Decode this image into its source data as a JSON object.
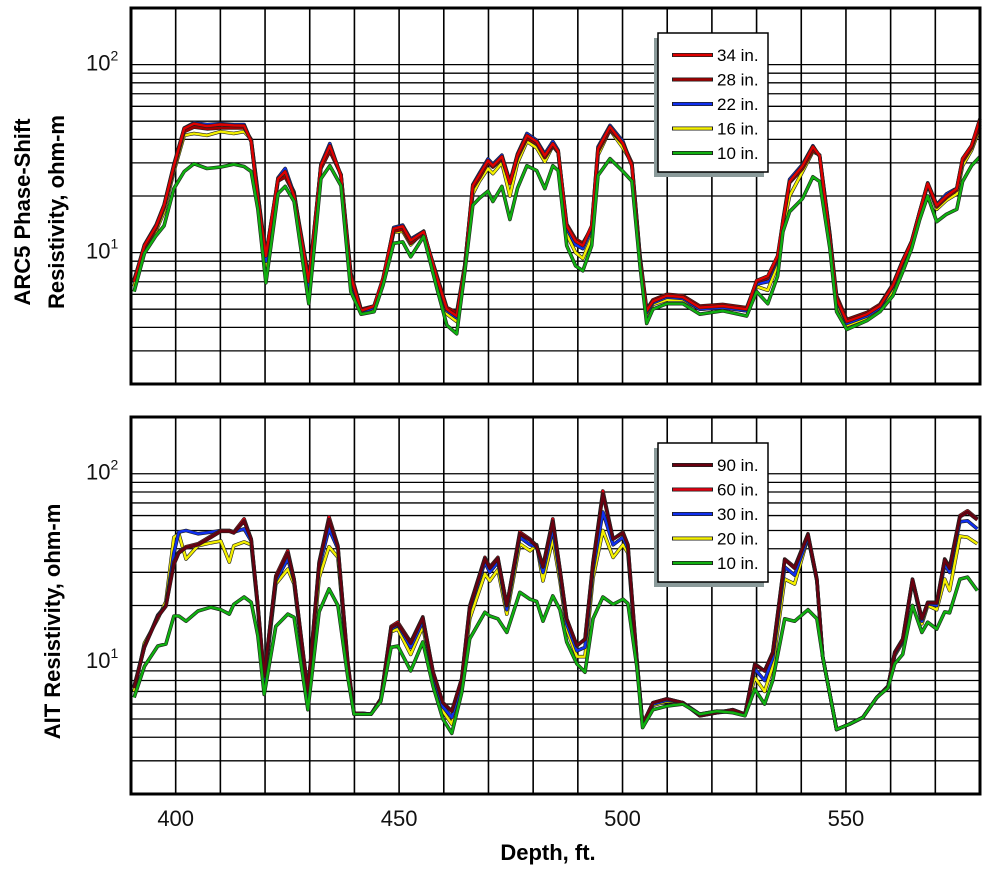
{
  "chart_data": [
    {
      "type": "line",
      "ylabel_lines": [
        "ARC5 Phase-Shift",
        "Resistivity, ohm-m"
      ],
      "xlabel": "",
      "xlim": [
        390,
        580
      ],
      "ylim": [
        2,
        200
      ],
      "yscale": "log",
      "grid": true,
      "legend_position": "top-right",
      "yticks": [
        {
          "value": 100,
          "base": "10",
          "exp": "2"
        },
        {
          "value": 10,
          "base": "10",
          "exp": "1"
        }
      ],
      "xticks": [],
      "x": [
        390.7,
        393,
        395.6,
        397.4,
        399.6,
        401.9,
        404.1,
        407,
        410,
        413,
        415.3,
        416.9,
        418.4,
        420.2,
        422.9,
        424.5,
        426.5,
        429.8,
        432.5,
        434.5,
        437,
        439.2,
        441.5,
        444.4,
        446.4,
        448.8,
        450.8,
        452.6,
        455.5,
        458.5,
        460.7,
        462.9,
        464.7,
        466.5,
        468,
        469.9,
        471,
        473,
        474.8,
        476.5,
        478.6,
        480.8,
        482.6,
        484.4,
        485.6,
        487.5,
        489.5,
        491.1,
        493.1,
        494.5,
        497.2,
        500.1,
        502.1,
        503.9,
        505.4,
        506.8,
        509.9,
        513.5,
        517.3,
        522.4,
        527.8,
        530,
        532.5,
        534.7,
        535.9,
        537.4,
        540.3,
        542.6,
        544.1,
        546.4,
        547.9,
        550.2,
        554.7,
        557.6,
        560.5,
        562.7,
        564.7,
        566.5,
        568.3,
        570.3,
        572.5,
        574.8,
        576.1,
        578.1,
        580
      ],
      "series": [
        {
          "name": "34 in.",
          "color": "#e00000",
          "values": [
            7.0,
            10.9,
            13.8,
            17.8,
            29,
            45.7,
            48.5,
            47,
            48,
            47.5,
            47.3,
            38.9,
            19.4,
            9.6,
            24.7,
            27,
            20,
            7.0,
            29,
            37,
            25.7,
            7.5,
            4.9,
            5.2,
            7.3,
            13.4,
            13.8,
            11.6,
            12.9,
            7.3,
            5.0,
            4.6,
            8.5,
            22.7,
            26,
            30.9,
            29,
            32.4,
            23.3,
            33,
            42,
            38.9,
            32.8,
            38,
            34.5,
            13.9,
            11.5,
            10.9,
            13.9,
            35.7,
            46.7,
            38,
            29,
            9.3,
            4.9,
            5.5,
            5.9,
            5.8,
            5.1,
            5.2,
            5.0,
            7.1,
            7.5,
            9.6,
            14.6,
            23.9,
            29,
            36.6,
            32.8,
            11.9,
            5.7,
            4.3,
            4.7,
            5.2,
            6.7,
            9.0,
            11.4,
            16.5,
            23.3,
            17.8,
            20,
            21.9,
            31.6,
            37,
            51.6
          ]
        },
        {
          "name": "28 in.",
          "color": "#a00000",
          "values": [
            7.2,
            10.6,
            13.4,
            17.3,
            28,
            44,
            46.5,
            45.5,
            46,
            46,
            46,
            40,
            20.5,
            9.8,
            24,
            25.3,
            20.5,
            7.3,
            28,
            34.7,
            26,
            7.8,
            5.0,
            5.2,
            7.2,
            13,
            13.3,
            11.2,
            12.7,
            7.5,
            5.1,
            4.8,
            8.6,
            22,
            25,
            30,
            28.5,
            31.5,
            23.5,
            32,
            40.5,
            38,
            32,
            37,
            34,
            14.2,
            11.8,
            11.2,
            13.6,
            34.5,
            45,
            38,
            30,
            9.6,
            5.0,
            5.6,
            6.0,
            5.9,
            5.2,
            5.3,
            5.1,
            7.0,
            7.3,
            9.4,
            14.3,
            23.5,
            28,
            35,
            33,
            12.4,
            5.9,
            4.4,
            4.8,
            5.3,
            6.8,
            9.1,
            11.5,
            16.5,
            23,
            17.5,
            19.6,
            21.5,
            30.5,
            36,
            48
          ]
        },
        {
          "name": "22 in.",
          "color": "#1030f0",
          "values": [
            7.1,
            11,
            14,
            18,
            29.5,
            46,
            49,
            48,
            48.5,
            48,
            48,
            39,
            19,
            9.0,
            25,
            28,
            20.5,
            6.3,
            29.5,
            38,
            25.5,
            7.2,
            4.8,
            5.1,
            7.1,
            13.6,
            14,
            11.8,
            13,
            7.1,
            4.9,
            4.5,
            8.4,
            23,
            26.5,
            31.5,
            29.5,
            33,
            23.8,
            33.5,
            43,
            39.5,
            33.5,
            39,
            35,
            13.5,
            11,
            10.5,
            13.5,
            36.5,
            47.5,
            39,
            29,
            9.0,
            4.8,
            5.4,
            5.8,
            5.7,
            5.0,
            5.1,
            4.9,
            6.8,
            7.0,
            9.2,
            14.8,
            24.5,
            29.5,
            37,
            32.5,
            11.5,
            5.6,
            4.2,
            4.6,
            5.1,
            6.6,
            8.9,
            11.3,
            16.5,
            23.5,
            18,
            20.5,
            22,
            31.5,
            37,
            50
          ]
        },
        {
          "name": "16 in.",
          "color": "#f4f000",
          "values": [
            6.6,
            10.4,
            13.0,
            16.5,
            27,
            42,
            43,
            42,
            44,
            43,
            44,
            40,
            21,
            8.5,
            24,
            26,
            21,
            6.5,
            29,
            35,
            26,
            7.3,
            4.8,
            5.0,
            7.0,
            12.8,
            13.0,
            11.0,
            13.0,
            7.0,
            4.7,
            4.3,
            8.3,
            20.5,
            24,
            28,
            26.3,
            30,
            20,
            30,
            39,
            36,
            30.4,
            37,
            34,
            12.5,
            10,
            9.3,
            12,
            33,
            45,
            36,
            30,
            9.5,
            4.7,
            5.3,
            5.6,
            5.6,
            5.0,
            5.1,
            4.9,
            6.6,
            6.3,
            8.6,
            13.5,
            20,
            27,
            34.5,
            33,
            12.5,
            5.4,
            4.1,
            4.5,
            5.0,
            6.3,
            8.5,
            11,
            16,
            23,
            17,
            19,
            20.5,
            29,
            35,
            46
          ]
        },
        {
          "name": "10 in.",
          "color": "#10b010",
          "values": [
            6.2,
            9.9,
            12.3,
            13.9,
            21.9,
            27,
            29.7,
            28,
            28.5,
            29.5,
            28.7,
            27,
            17,
            6.9,
            20.6,
            22.5,
            18.7,
            5.35,
            24.7,
            29,
            22.7,
            6.2,
            4.7,
            4.85,
            6.7,
            11.2,
            11.4,
            9.5,
            12.2,
            6.4,
            4.1,
            3.7,
            7.9,
            17.9,
            19.5,
            21.2,
            18.7,
            22.5,
            15,
            22,
            29,
            27.3,
            21.9,
            29,
            27.3,
            10.9,
            8.5,
            8.0,
            10.9,
            25.7,
            31.6,
            27,
            24,
            8.5,
            4.2,
            5.0,
            5.35,
            5.35,
            4.7,
            4.9,
            4.6,
            6.2,
            5.35,
            7.5,
            12.9,
            16.5,
            19.4,
            25.3,
            23.9,
            10.5,
            4.85,
            3.9,
            4.35,
            4.85,
            5.9,
            7.9,
            10.5,
            15,
            20,
            14.6,
            16,
            17,
            23.9,
            29,
            32.4
          ]
        }
      ]
    },
    {
      "type": "line",
      "ylabel_lines": [
        "AIT Resistivity, ohm-m"
      ],
      "xlabel": "Depth, ft.",
      "xlim": [
        390,
        580
      ],
      "ylim": [
        2,
        200
      ],
      "yscale": "log",
      "grid": true,
      "legend_position": "top-right",
      "yticks": [
        {
          "value": 100,
          "base": "10",
          "exp": "2"
        },
        {
          "value": 10,
          "base": "10",
          "exp": "1"
        }
      ],
      "xticks": [
        {
          "value": 400,
          "label": "400"
        },
        {
          "value": 450,
          "label": "450"
        },
        {
          "value": 500,
          "label": "500"
        },
        {
          "value": 550,
          "label": "550"
        }
      ],
      "x": [
        390.7,
        393,
        396,
        397.8,
        399.6,
        400.7,
        402.3,
        405,
        407.9,
        410.1,
        412,
        413,
        415.3,
        416.9,
        418.4,
        419.8,
        422.4,
        425.1,
        426.5,
        429.6,
        432.1,
        434.3,
        436.3,
        438.5,
        439.9,
        443.7,
        445.9,
        448.2,
        449.7,
        452.6,
        455.3,
        457.6,
        459.8,
        461.8,
        464,
        465.8,
        469.2,
        470.3,
        472.1,
        474.1,
        477,
        479.3,
        480.8,
        482.2,
        484.4,
        486,
        487.5,
        489.8,
        491.6,
        493.4,
        495.6,
        497.9,
        500.1,
        501.2,
        503.2,
        504.5,
        506.8,
        509.9,
        513.5,
        517.3,
        521.1,
        524.7,
        527.4,
        529.6,
        531.8,
        533.6,
        536.3,
        538.5,
        541.5,
        543.5,
        544.8,
        547.9,
        550.8,
        553.8,
        556.9,
        559.4,
        560.9,
        562.7,
        564.9,
        567,
        568.3,
        570.3,
        572.1,
        573.2,
        575.5,
        577.2,
        579.4
      ],
      "series": [
        {
          "name": "90 in.",
          "color": "#6a0010",
          "values": [
            7.3,
            12,
            17.4,
            19.8,
            33,
            38,
            40.5,
            42,
            46,
            49.5,
            49.5,
            48.5,
            56,
            45,
            20,
            8.5,
            28,
            38,
            27.5,
            7.0,
            33.5,
            57,
            41,
            10.2,
            5.4,
            5.3,
            6.4,
            15.3,
            16,
            12.6,
            17.2,
            8.9,
            6.1,
            5.5,
            8.2,
            19.5,
            35.5,
            31.5,
            35.5,
            20,
            48,
            44.5,
            41,
            32,
            56,
            31,
            17,
            12.3,
            13.2,
            33.5,
            78,
            45,
            48.5,
            42,
            10.5,
            4.7,
            6.1,
            6.4,
            6.1,
            5.2,
            5.4,
            5.6,
            5.3,
            9.7,
            9.0,
            11.2,
            35,
            31.5,
            47.5,
            27.6,
            10.7,
            4.4,
            4.7,
            5.1,
            6.5,
            7.45,
            11.2,
            13.2,
            27.5,
            17,
            20.7,
            20.6,
            35,
            31.5,
            59,
            62.5,
            57
          ]
        },
        {
          "name": "60 in.",
          "color": "#e00010",
          "values": [
            7.45,
            12.2,
            17.6,
            19.9,
            34,
            38.4,
            41,
            42.5,
            46.7,
            50,
            50,
            49,
            57.6,
            45,
            19.9,
            8.4,
            28.7,
            39,
            27.6,
            6.9,
            34,
            59,
            41.5,
            10,
            5.4,
            5.3,
            6.4,
            15.5,
            16.3,
            12.8,
            17.4,
            8.85,
            6.1,
            5.5,
            8.1,
            19.9,
            36,
            32,
            36,
            20,
            49,
            45,
            41.5,
            32.4,
            57.6,
            31,
            17,
            12.2,
            13.3,
            34,
            81,
            45,
            49,
            42,
            10.4,
            4.7,
            6.1,
            6.4,
            6.1,
            5.2,
            5.4,
            5.6,
            5.3,
            9.8,
            9.0,
            11.3,
            35.3,
            32,
            48,
            27.6,
            10.7,
            4.4,
            4.7,
            5.1,
            6.5,
            7.45,
            11.3,
            13.3,
            27.6,
            17,
            20.8,
            20.8,
            35.3,
            32,
            60,
            63.6,
            57.6
          ]
        },
        {
          "name": "30 in.",
          "color": "#1030f0",
          "values": [
            7.3,
            12.0,
            17.8,
            20,
            38,
            49,
            50,
            48,
            49,
            50,
            50,
            49,
            51,
            44,
            19.5,
            8.0,
            27,
            35.3,
            27,
            6.7,
            32,
            51,
            40,
            9.8,
            5.4,
            5.3,
            6.3,
            15,
            15.8,
            12,
            16.5,
            8.5,
            5.8,
            5.1,
            7.8,
            19,
            34,
            30,
            34,
            19,
            46,
            42,
            41,
            30,
            51,
            29,
            16,
            11.5,
            12,
            31,
            62.7,
            42,
            46,
            40,
            10.2,
            4.7,
            6.0,
            6.3,
            6.1,
            5.3,
            5.4,
            5.5,
            5.3,
            9.2,
            8.0,
            10.5,
            32,
            29,
            46,
            27,
            10.7,
            4.4,
            4.7,
            5.1,
            6.5,
            7.45,
            11,
            13,
            27,
            16.5,
            20.5,
            20,
            33,
            30,
            55.6,
            56.3,
            51
          ]
        },
        {
          "name": "20 in.",
          "color": "#f4f000",
          "values": [
            7.0,
            12.6,
            17,
            21,
            46,
            48,
            35.3,
            41.5,
            43,
            44,
            34,
            41.5,
            43.5,
            42,
            19,
            7.6,
            26,
            31.2,
            26,
            6.3,
            28,
            41,
            36,
            9.5,
            5.3,
            5.3,
            6.3,
            14.5,
            15,
            11,
            15.5,
            8.2,
            5.5,
            4.7,
            7.5,
            17,
            29.4,
            27,
            31,
            18,
            42.5,
            39,
            42,
            27,
            45,
            27,
            15,
            10.7,
            10.7,
            28,
            50,
            36,
            42,
            38,
            10,
            4.7,
            5.9,
            6.2,
            6.1,
            5.3,
            5.5,
            5.5,
            5.3,
            8.3,
            7.0,
            9.5,
            27.6,
            26,
            46,
            27,
            10.7,
            4.4,
            4.7,
            5.1,
            6.5,
            7.45,
            10.8,
            12.8,
            27,
            16,
            20,
            19,
            27.6,
            24,
            46.7,
            46,
            42.5
          ]
        },
        {
          "name": "10 in.",
          "color": "#10b010",
          "values": [
            6.5,
            9.5,
            12.2,
            12.5,
            17.6,
            17.6,
            16.5,
            18.7,
            19.6,
            19,
            18,
            20.3,
            22.2,
            20.8,
            13.8,
            6.75,
            15.5,
            18,
            17.3,
            5.6,
            18.5,
            24.5,
            20,
            8.4,
            5.3,
            5.3,
            6.2,
            12,
            12.2,
            9,
            12.8,
            7.45,
            5.0,
            4.2,
            6.9,
            13.3,
            18.4,
            17.6,
            17,
            14.4,
            23.5,
            21.6,
            21,
            16.5,
            22.5,
            19,
            12.8,
            9.8,
            8.85,
            17,
            22.2,
            20.3,
            21.6,
            20.5,
            9.5,
            4.5,
            5.6,
            5.85,
            6.0,
            5.3,
            5.5,
            5.4,
            5.2,
            7.2,
            6.0,
            8.0,
            17,
            16.5,
            19,
            17,
            10.7,
            4.4,
            4.7,
            5.1,
            6.5,
            7.3,
            9.8,
            11,
            20,
            14.4,
            16.3,
            15,
            18.5,
            18.3,
            27.6,
            28.3,
            24
          ]
        }
      ]
    }
  ]
}
